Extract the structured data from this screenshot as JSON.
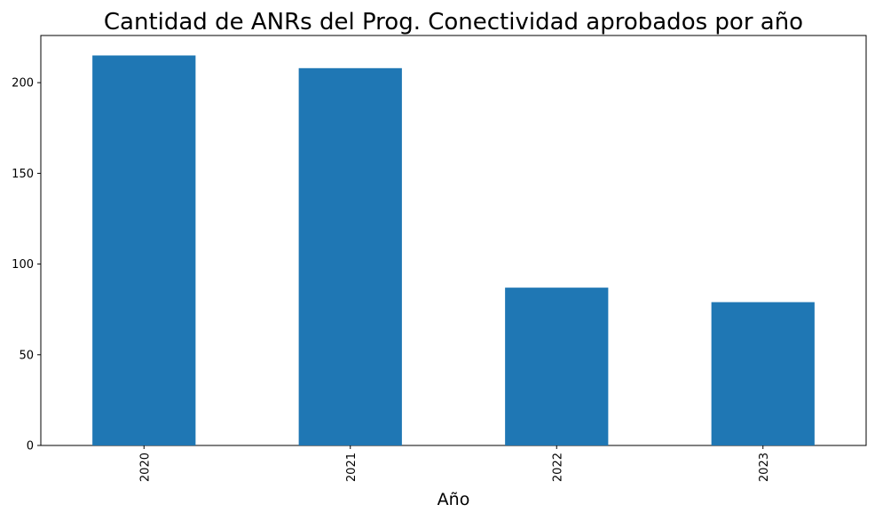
{
  "chart_data": {
    "type": "bar",
    "title": "Cantidad de ANRs del Prog. Conectividad aprobados por año",
    "xlabel": "Año",
    "ylabel": "",
    "categories": [
      "2020",
      "2021",
      "2022",
      "2023"
    ],
    "values": [
      215,
      208,
      87,
      79
    ],
    "ylim": [
      0,
      226
    ],
    "yticks": [
      0,
      50,
      100,
      150,
      200
    ],
    "bar_color": "#1f77b4",
    "x_tick_rotation": "vertical",
    "grid": false,
    "legend": "none"
  }
}
